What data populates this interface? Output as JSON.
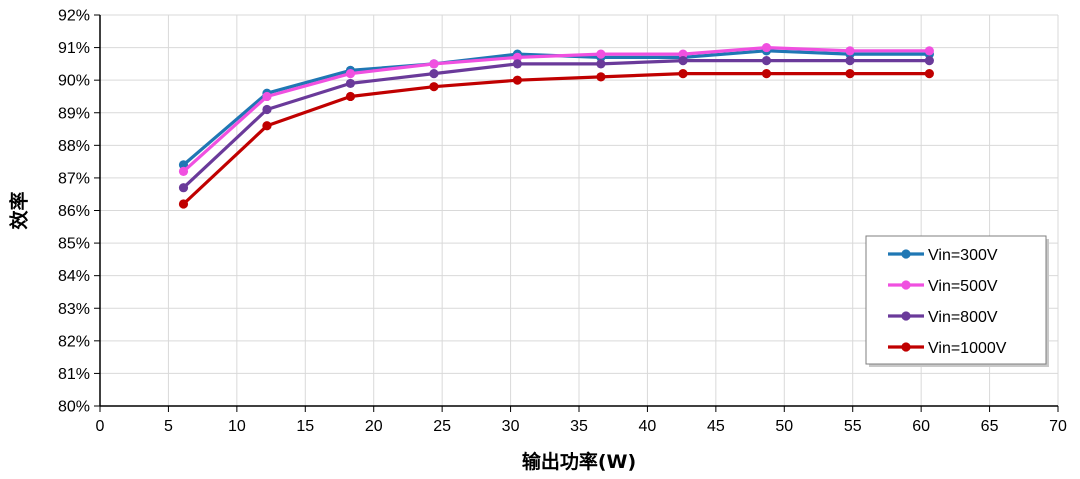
{
  "chart_data": {
    "type": "line",
    "title": "",
    "xlabel": "输出功率(W)",
    "ylabel": "效率",
    "xlim": [
      0,
      70
    ],
    "ylim": [
      80,
      92
    ],
    "x_ticks": [
      0,
      5,
      10,
      15,
      20,
      25,
      30,
      35,
      40,
      45,
      50,
      55,
      60,
      65,
      70
    ],
    "x_tick_labels": [
      "0",
      "5",
      "10",
      "15",
      "20",
      "25",
      "30",
      "35",
      "40",
      "45",
      "50",
      "55",
      "60",
      "65",
      "70"
    ],
    "y_ticks": [
      80,
      81,
      82,
      83,
      84,
      85,
      86,
      87,
      88,
      89,
      90,
      91,
      92
    ],
    "y_tick_labels": [
      "80%",
      "81%",
      "82%",
      "83%",
      "84%",
      "85%",
      "86%",
      "87%",
      "88%",
      "89%",
      "90%",
      "91%",
      "92%"
    ],
    "grid": true,
    "legend_position": "bottom-right",
    "x": [
      6.1,
      12.2,
      18.3,
      24.4,
      30.5,
      36.6,
      42.6,
      48.7,
      54.8,
      60.6
    ],
    "series": [
      {
        "name": "Vin=300V",
        "color": "#1F77B4",
        "values": [
          87.4,
          89.6,
          90.3,
          90.5,
          90.8,
          90.7,
          90.7,
          90.9,
          90.8,
          90.8
        ]
      },
      {
        "name": "Vin=500V",
        "color": "#F050E0",
        "values": [
          87.2,
          89.5,
          90.2,
          90.5,
          90.7,
          90.8,
          90.8,
          91.0,
          90.9,
          90.9
        ]
      },
      {
        "name": "Vin=800V",
        "color": "#6A3A9A",
        "values": [
          86.7,
          89.1,
          89.9,
          90.2,
          90.5,
          90.5,
          90.6,
          90.6,
          90.6,
          90.6
        ]
      },
      {
        "name": "Vin=1000V",
        "color": "#C00000",
        "values": [
          86.2,
          88.6,
          89.5,
          89.8,
          90.0,
          90.1,
          90.2,
          90.2,
          90.2,
          90.2
        ]
      }
    ]
  }
}
